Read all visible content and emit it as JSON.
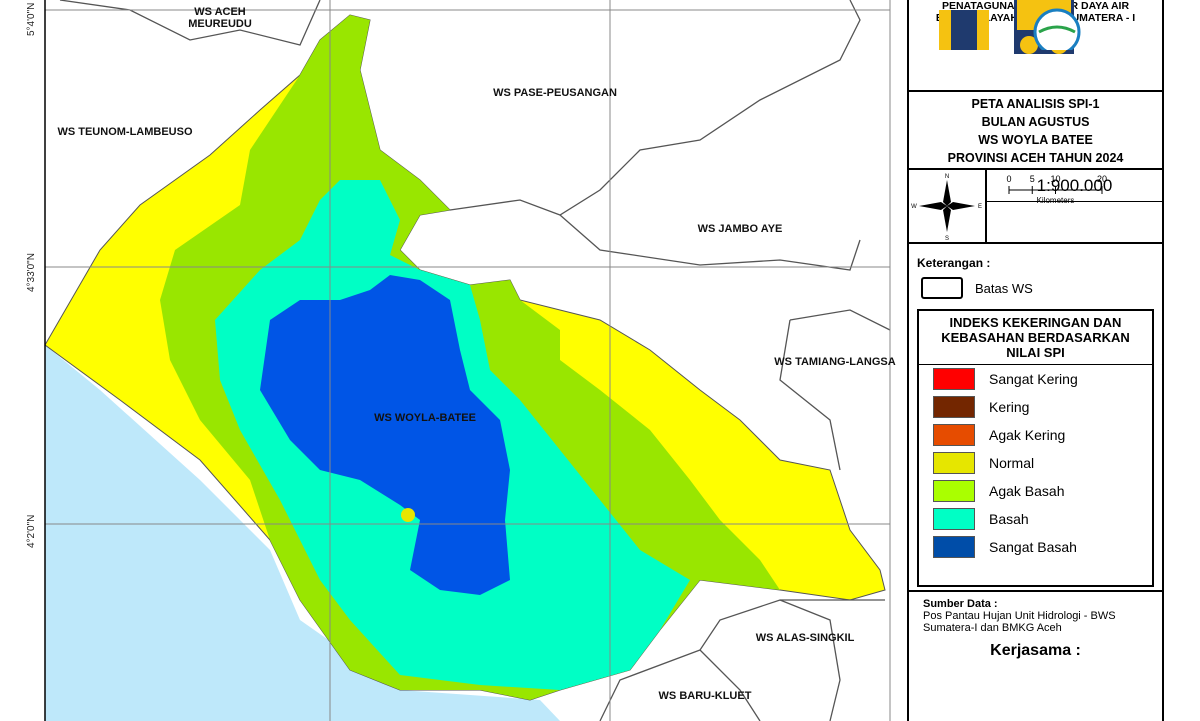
{
  "map": {
    "lat_labels": [
      "5°4'0\"N",
      "4°33'0\"N",
      "4°2'0\"N"
    ],
    "regions": [
      "WS ACEH MEUREUDU",
      "WS PASE-PEUSANGAN",
      "WS TEUNOM-LAMBEUSO",
      "WS JAMBO AYE",
      "WS TAMIANG-LANGSA",
      "WS WOYLA-BATEE",
      "WS ALAS-SINGKIL",
      "WS BARU-KLUET"
    ]
  },
  "panel": {
    "agency": [
      "PENATAGUNAAN SUMBER DAYA AIR",
      "BALAI WILAYAH SUNGAI SUMATERA - I"
    ],
    "title_lines": [
      "PETA ANALISIS SPI-1",
      "BULAN AGUSTUS",
      "WS WOYLA BATEE",
      "PROVINSI ACEH TAHUN 2024"
    ],
    "scale": "1:900.000",
    "scale_ticks": [
      0,
      5,
      10,
      20
    ],
    "scale_unit": "Kilometers",
    "compass": [
      "N",
      "E",
      "S",
      "W"
    ],
    "keterangan": "Keterangan :",
    "batas": "Batas WS",
    "legend_title": "INDEKS KEKERINGAN DAN KEBASAHAN BERDASARKAN NILAI SPI",
    "legend": [
      {
        "label": "Sangat Kering",
        "color": "#ff0000"
      },
      {
        "label": "Kering",
        "color": "#732600"
      },
      {
        "label": "Agak Kering",
        "color": "#e64c00"
      },
      {
        "label": "Normal",
        "color": "#e6e600"
      },
      {
        "label": "Agak Basah",
        "color": "#aaff00"
      },
      {
        "label": "Basah",
        "color": "#00ffc5"
      },
      {
        "label": "Sangat Basah",
        "color": "#004da8"
      }
    ],
    "source_title": "Sumber Data :",
    "source": "Pos Pantau Hujan Unit Hidrologi - BWS Sumatera-I dan BMKG Aceh",
    "kerjasama": "Kerjasama :"
  }
}
